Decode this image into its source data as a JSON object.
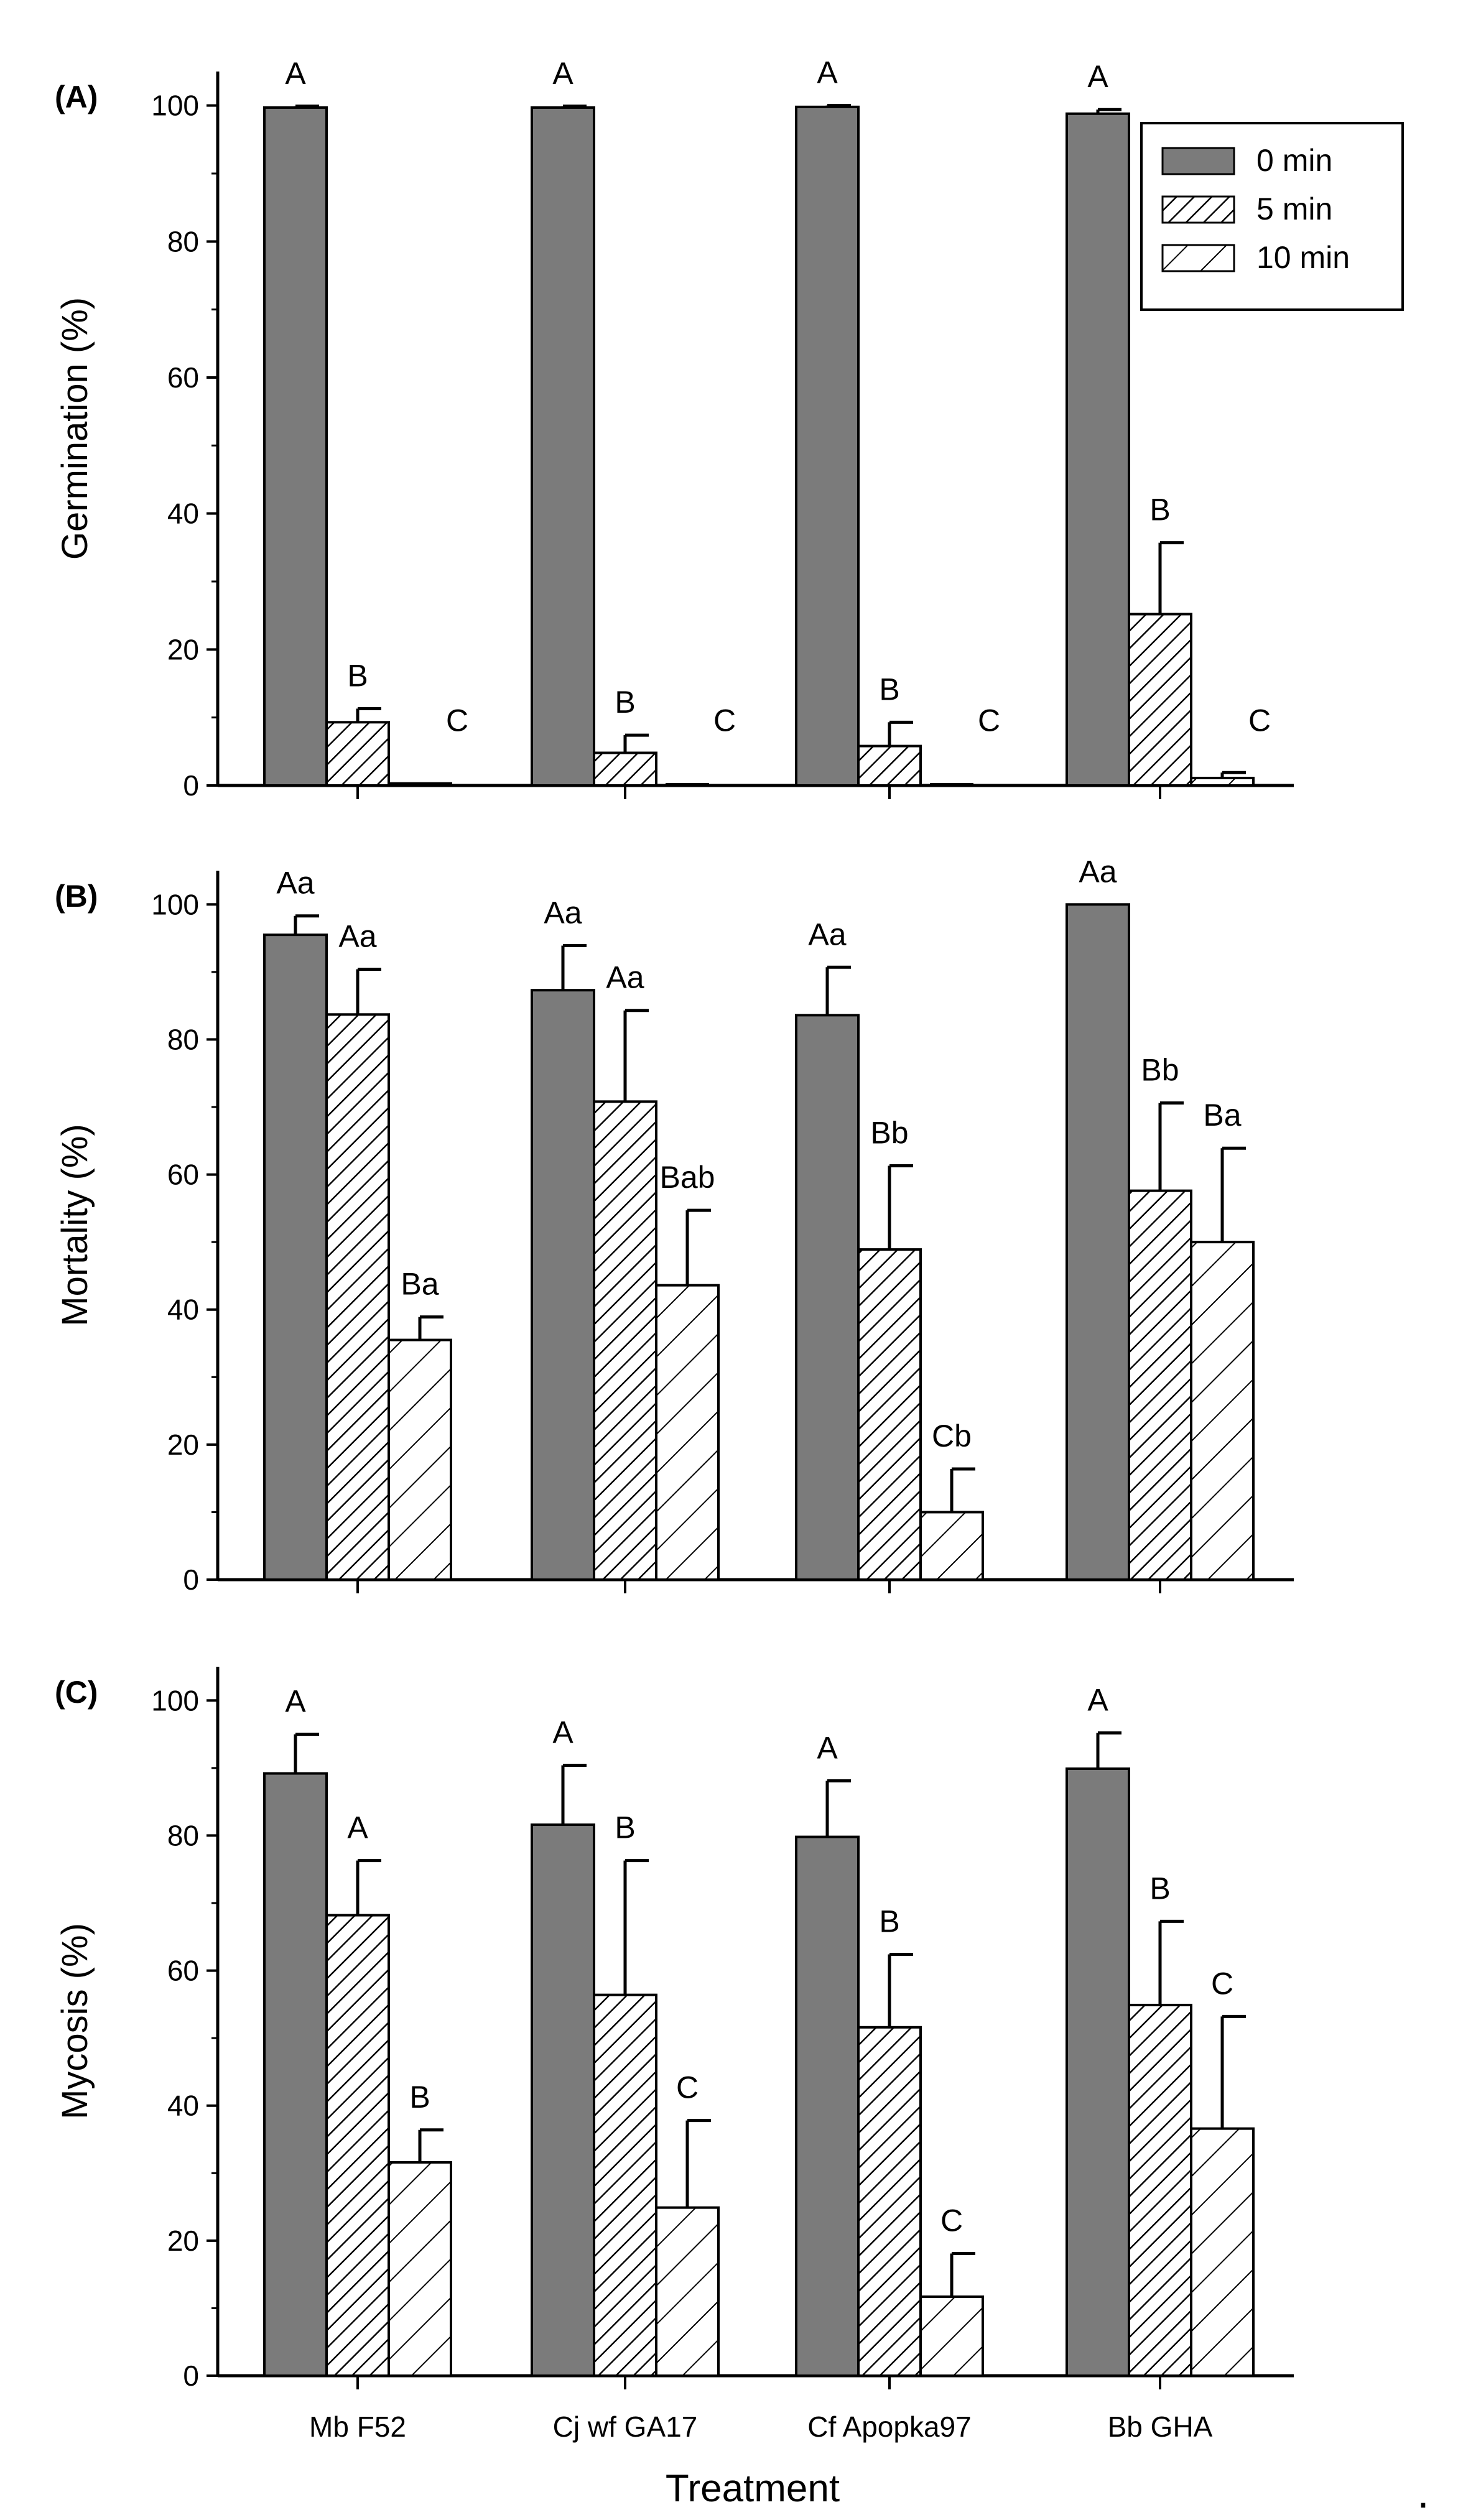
{
  "chart_data": [
    {
      "type": "bar",
      "panel_label": "(A)",
      "ylabel": "Germination (%)",
      "ylim": [
        0,
        105
      ],
      "yticks": [
        "0",
        "20",
        "40",
        "60",
        "80",
        "100"
      ],
      "categories": [
        "Mb F52",
        "Cj wf GA17",
        "Cf Apopka97",
        "Bb GHA"
      ],
      "series": [
        {
          "name": "0 min",
          "values": [
            99.7,
            99.7,
            99.8,
            98.8
          ],
          "errors": [
            0.2,
            0.2,
            0.2,
            0.6
          ],
          "letters": [
            "A",
            "A",
            "A",
            "A"
          ]
        },
        {
          "name": "5 min",
          "values": [
            9.3,
            4.8,
            5.8,
            25.2
          ],
          "errors": [
            2.0,
            2.6,
            3.5,
            10.5
          ],
          "letters": [
            "B",
            "B",
            "B",
            "B"
          ]
        },
        {
          "name": "10 min",
          "values": [
            0.3,
            0.0,
            0.0,
            1.1
          ],
          "errors": [
            0.0,
            0.0,
            0.0,
            0.8
          ],
          "letters": [
            "C",
            "C",
            "C",
            "C"
          ]
        }
      ],
      "legend": [
        "0 min",
        "5 min",
        "10 min"
      ]
    },
    {
      "type": "bar",
      "panel_label": "(B)",
      "ylabel": "Mortality (%)",
      "ylim": [
        0,
        105
      ],
      "yticks": [
        "0",
        "20",
        "40",
        "60",
        "80",
        "100"
      ],
      "categories": [
        "Mb F52",
        "Cj wf GA17",
        "Cf Apopka97",
        "Bb GHA"
      ],
      "series": [
        {
          "name": "0 min",
          "values": [
            95.5,
            87.3,
            83.6,
            100.0
          ],
          "errors": [
            2.8,
            6.6,
            7.1,
            0.0
          ],
          "letters": [
            "Aa",
            "Aa",
            "Aa",
            "Aa"
          ]
        },
        {
          "name": "5 min",
          "values": [
            83.7,
            70.8,
            48.9,
            57.6
          ],
          "errors": [
            6.7,
            13.5,
            12.4,
            13.0
          ],
          "letters": [
            "Aa",
            "Aa",
            "Bb",
            "Bb"
          ]
        },
        {
          "name": "10 min",
          "values": [
            35.5,
            43.6,
            10.0,
            50.0
          ],
          "errors": [
            3.4,
            11.1,
            6.4,
            13.9
          ],
          "letters": [
            "Ba",
            "Bab",
            "Cb",
            "Ba"
          ]
        }
      ]
    },
    {
      "type": "bar",
      "panel_label": "(C)",
      "ylabel": "Mycosis (%)",
      "xlabel": "Treatment",
      "ylim": [
        0,
        105
      ],
      "yticks": [
        "0",
        "20",
        "40",
        "60",
        "80",
        "100"
      ],
      "categories": [
        "Mb F52",
        "Cj wf GA17",
        "Cf Apopka97",
        "Bb GHA"
      ],
      "series": [
        {
          "name": "0 min",
          "values": [
            89.2,
            81.6,
            79.8,
            89.9
          ],
          "errors": [
            5.8,
            8.8,
            8.3,
            5.3
          ],
          "letters": [
            "A",
            "A",
            "A",
            "A"
          ]
        },
        {
          "name": "5 min",
          "values": [
            68.2,
            56.4,
            51.6,
            54.9
          ],
          "errors": [
            8.1,
            19.9,
            10.8,
            12.4
          ],
          "letters": [
            "A",
            "B",
            "B",
            "B"
          ]
        },
        {
          "name": "10 min",
          "values": [
            31.6,
            24.9,
            11.7,
            36.6
          ],
          "errors": [
            4.8,
            12.9,
            6.4,
            16.6
          ],
          "letters": [
            "B",
            "C",
            "C",
            "C"
          ]
        }
      ]
    }
  ],
  "trailing_mark": "."
}
